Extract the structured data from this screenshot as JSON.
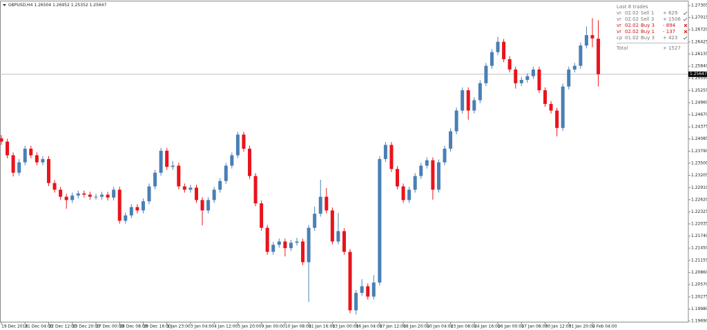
{
  "chart_data": {
    "type": "candlestick",
    "title": "GBPUSD,H4  1.26504 1.26952 1.25352 1.25647",
    "categories": [
      "19 Dec 2016",
      null,
      null,
      null,
      "21 Dec 04:00",
      null,
      null,
      null,
      "22 Dec 12:00",
      null,
      null,
      null,
      "23 Dec 20:00",
      null,
      null,
      null,
      "27 Dec 00:00",
      null,
      null,
      null,
      "28 Dec 08:00",
      null,
      null,
      null,
      "29 Dec 16:00",
      null,
      null,
      null,
      "1 Jan 23:00",
      null,
      null,
      null,
      "3 Jan 04:00",
      null,
      null,
      null,
      "4 Jan 12:00",
      null,
      null,
      null,
      "5 Jan 20:00",
      null,
      null,
      null,
      "9 Jan 00:00",
      null,
      null,
      null,
      "10 Jan 08:00",
      null,
      null,
      null,
      "11 Jan 16:00",
      null,
      null,
      null,
      "13 Jan 00:00",
      null,
      null,
      null,
      "16 Jan 04:00",
      null,
      null,
      null,
      "17 Jan 12:00",
      null,
      null,
      null,
      "18 Jan 20:00",
      null,
      null,
      null,
      "20 Jan 04:00",
      null,
      null,
      null,
      "23 Jan 08:00",
      null,
      null,
      null,
      "24 Jan 16:00",
      null,
      null,
      null,
      "26 Jan 00:00",
      null,
      null,
      null,
      "27 Jan 08:00",
      null,
      null,
      null,
      "30 Jan 12:00",
      null,
      null,
      null,
      "31 Jan 20:00",
      null,
      null,
      null,
      "2 Feb 04:00",
      null
    ],
    "open": [
      1.241,
      1.2402,
      1.2369,
      1.2327,
      1.2352,
      1.2385,
      1.2369,
      1.2352,
      1.236,
      1.2302,
      1.2286,
      1.2269,
      1.2261,
      1.2272,
      1.2277,
      1.2274,
      1.2269,
      1.2269,
      1.2274,
      1.2267,
      1.2286,
      1.2211,
      1.2224,
      1.2244,
      1.2236,
      1.2258,
      1.2294,
      1.2327,
      1.238,
      1.2341,
      1.2344,
      1.2294,
      1.2286,
      1.2291,
      1.2261,
      1.2236,
      1.2261,
      1.2286,
      1.2307,
      1.2344,
      1.2369,
      1.2419,
      1.2385,
      1.2319,
      1.2253,
      1.2194,
      1.2136,
      1.2153,
      1.2161,
      1.2145,
      1.2158,
      1.2161,
      1.2111,
      1.2194,
      1.2228,
      1.2269,
      1.2236,
      1.2161,
      1.2186,
      1.2136,
      1.1995,
      1.2037,
      1.2053,
      1.2028,
      1.2062,
      1.236,
      1.2394,
      1.2336,
      1.2294,
      1.2261,
      1.2286,
      1.2319,
      1.2344,
      1.2357,
      1.2286,
      1.2352,
      1.2385,
      1.2427,
      1.2477,
      1.2526,
      1.2477,
      1.2502,
      1.2543,
      1.2585,
      1.2618,
      1.2643,
      1.2601,
      1.2576,
      1.2543,
      1.2551,
      1.256,
      1.2576,
      1.2526,
      1.2493,
      1.2477,
      1.2435,
      1.2535,
      1.2576,
      1.2585,
      1.2634,
      1.2659,
      1.26504
    ],
    "high": [
      1.2418,
      1.2409,
      1.2376,
      1.236,
      1.2392,
      1.2392,
      1.2376,
      1.2367,
      1.2367,
      1.2309,
      1.2293,
      1.2276,
      1.2279,
      1.2284,
      1.2284,
      1.2281,
      1.2276,
      1.2281,
      1.2281,
      1.2293,
      1.2293,
      1.2231,
      1.2251,
      1.2251,
      1.2265,
      1.2301,
      1.2334,
      1.2387,
      1.2387,
      1.2355,
      1.2351,
      1.2301,
      1.2298,
      1.2298,
      1.2268,
      1.2268,
      1.2293,
      1.2314,
      1.2351,
      1.2376,
      1.2426,
      1.2426,
      1.2392,
      1.2326,
      1.226,
      1.2201,
      1.216,
      1.2168,
      1.2168,
      1.2165,
      1.217,
      1.2168,
      1.2201,
      1.2245,
      1.231,
      1.229,
      1.2243,
      1.223,
      1.2193,
      1.2143,
      1.2044,
      1.207,
      1.206,
      1.208,
      1.2367,
      1.2401,
      1.2401,
      1.2343,
      1.2301,
      1.2293,
      1.2326,
      1.2351,
      1.2364,
      1.2364,
      1.2359,
      1.2392,
      1.2434,
      1.2484,
      1.2533,
      1.2533,
      1.2509,
      1.255,
      1.2592,
      1.2625,
      1.2655,
      1.265,
      1.2608,
      1.2583,
      1.2558,
      1.2567,
      1.2583,
      1.2583,
      1.2533,
      1.25,
      1.2484,
      1.2542,
      1.2583,
      1.2592,
      1.2641,
      1.268,
      1.27,
      1.26952
    ],
    "low": [
      1.2394,
      1.2362,
      1.2318,
      1.232,
      1.2345,
      1.2362,
      1.2345,
      1.2345,
      1.2295,
      1.2279,
      1.2262,
      1.224,
      1.2254,
      1.2265,
      1.2267,
      1.2262,
      1.2262,
      1.2262,
      1.226,
      1.226,
      1.2204,
      1.2204,
      1.2217,
      1.2229,
      1.2229,
      1.2251,
      1.2287,
      1.232,
      1.2334,
      1.2334,
      1.2287,
      1.2279,
      1.2279,
      1.2254,
      1.22,
      1.2229,
      1.2254,
      1.2279,
      1.23,
      1.2337,
      1.2362,
      1.2378,
      1.2312,
      1.2246,
      1.2187,
      1.2129,
      1.2129,
      1.2146,
      1.2125,
      1.2138,
      1.2151,
      1.2104,
      1.2015,
      1.2187,
      1.2221,
      1.2229,
      1.2154,
      1.2154,
      1.2129,
      1.1988,
      1.1985,
      1.203,
      1.2021,
      1.2021,
      1.2055,
      1.2353,
      1.2329,
      1.2287,
      1.2254,
      1.2254,
      1.2279,
      1.2312,
      1.2337,
      1.2262,
      1.2279,
      1.2345,
      1.2378,
      1.242,
      1.247,
      1.2455,
      1.247,
      1.2495,
      1.2536,
      1.2578,
      1.2611,
      1.2594,
      1.2569,
      1.253,
      1.2536,
      1.2544,
      1.2553,
      1.2519,
      1.2486,
      1.247,
      1.2415,
      1.2428,
      1.2528,
      1.2569,
      1.2578,
      1.2627,
      1.263,
      1.25352
    ],
    "close": [
      1.2402,
      1.2369,
      1.2327,
      1.2352,
      1.2385,
      1.2369,
      1.2352,
      1.236,
      1.2302,
      1.2286,
      1.2269,
      1.2261,
      1.2272,
      1.2277,
      1.2274,
      1.2269,
      1.2269,
      1.2274,
      1.2267,
      1.2286,
      1.2211,
      1.2224,
      1.2244,
      1.2236,
      1.2258,
      1.2294,
      1.2327,
      1.238,
      1.2341,
      1.2344,
      1.2294,
      1.2286,
      1.2291,
      1.2261,
      1.2236,
      1.2261,
      1.2286,
      1.2307,
      1.2344,
      1.2369,
      1.2419,
      1.2385,
      1.2319,
      1.2253,
      1.2194,
      1.2136,
      1.2153,
      1.2161,
      1.2145,
      1.2158,
      1.2161,
      1.2111,
      1.2194,
      1.2228,
      1.2269,
      1.2236,
      1.2161,
      1.2186,
      1.2136,
      1.1995,
      1.2037,
      1.2053,
      1.2028,
      1.2062,
      1.236,
      1.2394,
      1.2336,
      1.2294,
      1.2261,
      1.2286,
      1.2319,
      1.2344,
      1.2357,
      1.2286,
      1.2352,
      1.2385,
      1.2427,
      1.2477,
      1.2526,
      1.2477,
      1.2502,
      1.2543,
      1.2585,
      1.2618,
      1.2643,
      1.2601,
      1.2576,
      1.2543,
      1.2551,
      1.256,
      1.2576,
      1.2526,
      1.2493,
      1.2477,
      1.2435,
      1.2535,
      1.2576,
      1.2585,
      1.2634,
      1.2659,
      1.2651,
      1.25647
    ],
    "up_color": "#4a7fb5",
    "down_color": "#e8141c",
    "ylim": [
      1.19657,
      1.27405
    ],
    "yticks": [
      1.27305,
      1.27015,
      {
        "value": 1.2672,
        "label": "1.26720"
      },
      1.26425,
      1.26135,
      {
        "value": 1.2584,
        "label": "1.25840"
      },
      {
        "value": 1.2555,
        "label": "1.25550"
      },
      1.25255,
      {
        "value": 1.2496,
        "label": "1.24960"
      },
      {
        "value": 1.2467,
        "label": "1.24670"
      },
      1.24375,
      1.24085,
      {
        "value": 1.2379,
        "label": "1.23790"
      },
      {
        "value": 1.235,
        "label": "1.23500"
      },
      1.23205,
      {
        "value": 1.2291,
        "label": "1.22910"
      },
      {
        "value": 1.2262,
        "label": "1.22620"
      },
      1.22325,
      1.22035,
      {
        "value": 1.2174,
        "label": "1.21740"
      },
      {
        "value": 1.2145,
        "label": "1.21450"
      },
      1.21155,
      {
        "value": 1.2086,
        "label": "1.20860"
      },
      {
        "value": 1.2057,
        "label": "1.20570"
      },
      1.20275,
      {
        "value": 1.1998,
        "label": "1.19980"
      },
      {
        "value": 1.1969,
        "label": "1.19690"
      }
    ],
    "current_price": 1.25647
  },
  "trades_panel": {
    "title": "Last 8 trades",
    "rows": [
      [
        "vr",
        "02.02",
        "Sell 1",
        "+ 629"
      ],
      [
        "vr",
        "02.02",
        "Sell 3",
        "+ 1506"
      ],
      [
        "vr",
        "02.02",
        "Buy 3",
        "- 894"
      ],
      [
        "vr",
        "02.02",
        "Buy 1",
        "- 137"
      ],
      [
        "cp",
        "01.02",
        "Buy 3",
        "+ 423"
      ]
    ],
    "total_label": "Total",
    "total_value": "+ 1527"
  }
}
